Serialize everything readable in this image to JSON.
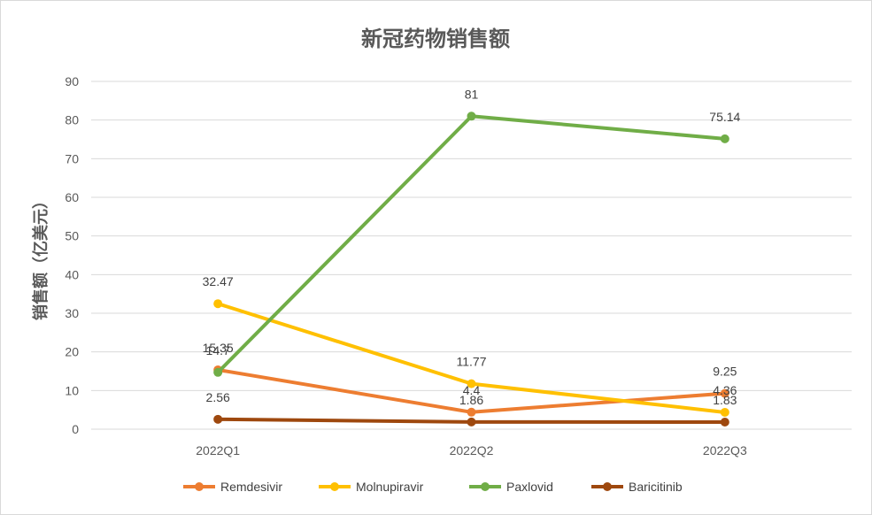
{
  "chart_data": {
    "type": "line",
    "title": "新冠药物销售额",
    "xlabel": "",
    "ylabel": "销售额（亿美元）",
    "ylim": [
      0,
      90
    ],
    "yticks": [
      0,
      10,
      20,
      30,
      40,
      50,
      60,
      70,
      80,
      90
    ],
    "categories": [
      "2022Q1",
      "2022Q2",
      "2022Q3"
    ],
    "grid": true,
    "legend": "bottom",
    "series": [
      {
        "name": "Remdesivir",
        "values": [
          15.35,
          4.4,
          9.25
        ],
        "labels": [
          "15.35",
          "4.4",
          "9.25"
        ],
        "color": "#ED7D31"
      },
      {
        "name": "Molnupiravir",
        "values": [
          32.47,
          11.77,
          4.36
        ],
        "labels": [
          "32.47",
          "11.77",
          "4.36"
        ],
        "color": "#FFC000"
      },
      {
        "name": "Paxlovid",
        "values": [
          14.7,
          81,
          75.14
        ],
        "labels": [
          "14.7",
          "81",
          "75.14"
        ],
        "color": "#70AD47"
      },
      {
        "name": "Baricitinib",
        "values": [
          2.56,
          1.86,
          1.83
        ],
        "labels": [
          "2.56",
          "1.86",
          "1.83"
        ],
        "color": "#9E480E"
      }
    ]
  }
}
